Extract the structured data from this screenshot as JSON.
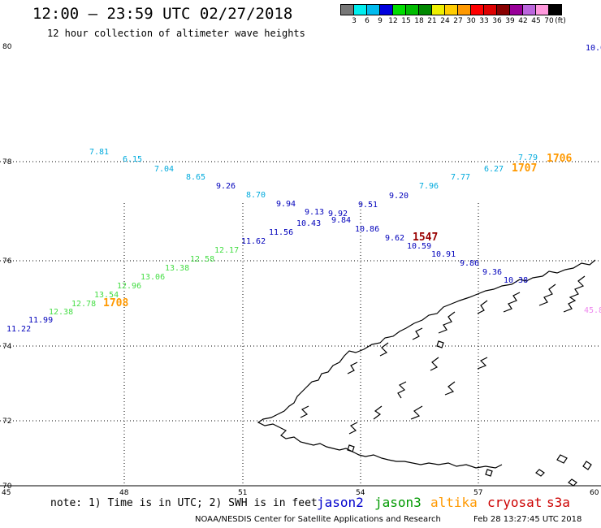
{
  "header": {
    "title": "12:00 – 23:59 UTC 02/27/2018",
    "subtitle": "12 hour collection of altimeter wave heights"
  },
  "color_scale": {
    "unit": "(ft)",
    "colors": [
      "#777777",
      "#00eeee",
      "#00bbee",
      "#0000dd",
      "#00dd00",
      "#00bb00",
      "#008800",
      "#eeee00",
      "#ffcc00",
      "#ff9900",
      "#ff0000",
      "#dd0000",
      "#880000",
      "#990099",
      "#bb66dd",
      "#ff99dd",
      "#000000"
    ],
    "labels": [
      "3",
      "6",
      "9",
      "12",
      "15",
      "18",
      "21",
      "24",
      "27",
      "30",
      "33",
      "36",
      "39",
      "42",
      "45",
      "70"
    ]
  },
  "axes": {
    "latitudes": [
      "80",
      "78",
      "76",
      "74",
      "72",
      "70"
    ],
    "longitudes": [
      "45",
      "48",
      "51",
      "54",
      "57",
      "60"
    ]
  },
  "observations": [
    {
      "value": "7.81",
      "color": "#00aadd"
    },
    {
      "value": "6.15",
      "color": "#00aadd"
    },
    {
      "value": "7.04",
      "color": "#00aadd"
    },
    {
      "value": "8.65",
      "color": "#00aadd"
    },
    {
      "value": "9.26",
      "color": "#0000bb"
    },
    {
      "value": "8.70",
      "color": "#00aadd"
    },
    {
      "value": "9.94",
      "color": "#0000bb"
    },
    {
      "value": "9.13",
      "color": "#0000bb"
    },
    {
      "value": "9.92",
      "color": "#0000bb"
    },
    {
      "value": "9.51",
      "color": "#0000bb"
    },
    {
      "value": "9.20",
      "color": "#0000bb"
    },
    {
      "value": "7.96",
      "color": "#00aadd"
    },
    {
      "value": "7.77",
      "color": "#00aadd"
    },
    {
      "value": "6.27",
      "color": "#00aadd"
    },
    {
      "value": "7.79",
      "color": "#00aadd"
    },
    {
      "value": "10.43",
      "color": "#0000bb"
    },
    {
      "value": "9.84",
      "color": "#0000bb"
    },
    {
      "value": "11.56",
      "color": "#0000bb"
    },
    {
      "value": "11.62",
      "color": "#0000bb"
    },
    {
      "value": "10.86",
      "color": "#0000bb"
    },
    {
      "value": "9.62",
      "color": "#0000bb"
    },
    {
      "value": "10.59",
      "color": "#0000bb"
    },
    {
      "value": "10.91",
      "color": "#0000bb"
    },
    {
      "value": "9.86",
      "color": "#0000bb"
    },
    {
      "value": "9.36",
      "color": "#0000bb"
    },
    {
      "value": "10.38",
      "color": "#0000bb"
    },
    {
      "value": "12.17",
      "color": "#44dd44"
    },
    {
      "value": "12.58",
      "color": "#44dd44"
    },
    {
      "value": "13.38",
      "color": "#44dd44"
    },
    {
      "value": "13.06",
      "color": "#44dd44"
    },
    {
      "value": "12.96",
      "color": "#44dd44"
    },
    {
      "value": "13.54",
      "color": "#44dd44"
    },
    {
      "value": "12.78",
      "color": "#44dd44"
    },
    {
      "value": "12.38",
      "color": "#44dd44"
    },
    {
      "value": "11.99",
      "color": "#0000bb"
    },
    {
      "value": "11.22",
      "color": "#0000bb"
    },
    {
      "value": "10.0",
      "color": "#0000bb"
    },
    {
      "value": "45.8",
      "color": "#ee88ee"
    }
  ],
  "pass_times": [
    {
      "value": "1706",
      "color": "#ff9900"
    },
    {
      "value": "1707",
      "color": "#ff9900"
    },
    {
      "value": "1547",
      "color": "#990000"
    },
    {
      "value": "1708",
      "color": "#ff9900"
    }
  ],
  "footer": {
    "note": "note: 1) Time is in UTC; 2) SWH is in feet",
    "satellites": [
      {
        "name": "jason2",
        "color": "#0000cc"
      },
      {
        "name": "jason3",
        "color": "#009900"
      },
      {
        "name": "altika",
        "color": "#ff9900"
      },
      {
        "name": "cryosat",
        "color": "#cc0000"
      },
      {
        "name": "s3a",
        "color": "#cc0000"
      }
    ],
    "credit": "NOAA/NESDIS Center for Satellite Applications and Research",
    "timestamp": "Feb 28 13:27:45 UTC 2018"
  }
}
